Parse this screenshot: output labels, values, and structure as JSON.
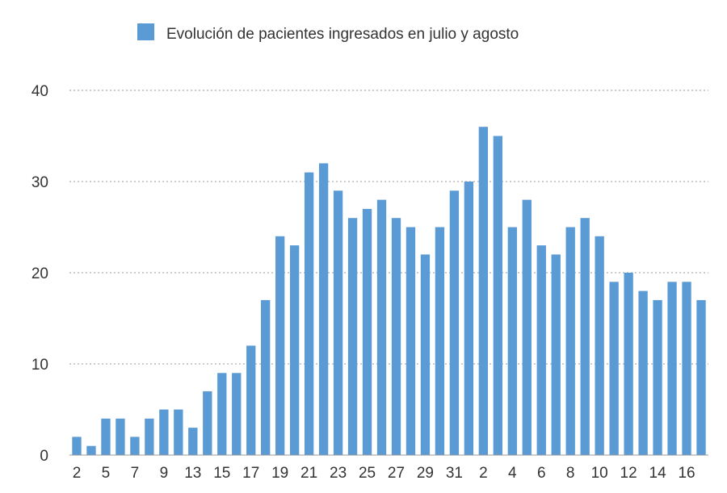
{
  "chart_data": {
    "type": "bar",
    "legend": {
      "label": "Evolución de pacientes ingresados en julio y agosto",
      "position": "top-center"
    },
    "series": [
      {
        "name": "Evolución de pacientes ingresados en julio y agosto",
        "color": "#5b9bd5",
        "values": [
          2,
          1,
          4,
          4,
          2,
          4,
          5,
          5,
          3,
          7,
          9,
          9,
          12,
          17,
          24,
          23,
          31,
          32,
          29,
          26,
          27,
          28,
          26,
          25,
          22,
          25,
          29,
          30,
          36,
          35,
          25,
          28,
          23,
          22,
          25,
          26,
          24,
          19,
          20,
          18,
          17,
          19,
          19,
          17
        ]
      }
    ],
    "x_tick_labels": [
      "2",
      "5",
      "7",
      "9",
      "13",
      "15",
      "17",
      "19",
      "21",
      "23",
      "25",
      "27",
      "29",
      "31",
      "2",
      "4",
      "6",
      "8",
      "10",
      "12",
      "14",
      "16"
    ],
    "ylim": [
      0,
      40
    ],
    "y_ticks": [
      "0",
      "10",
      "20",
      "30",
      "40"
    ],
    "grid": true,
    "grid_style": "dotted-horizontal"
  }
}
